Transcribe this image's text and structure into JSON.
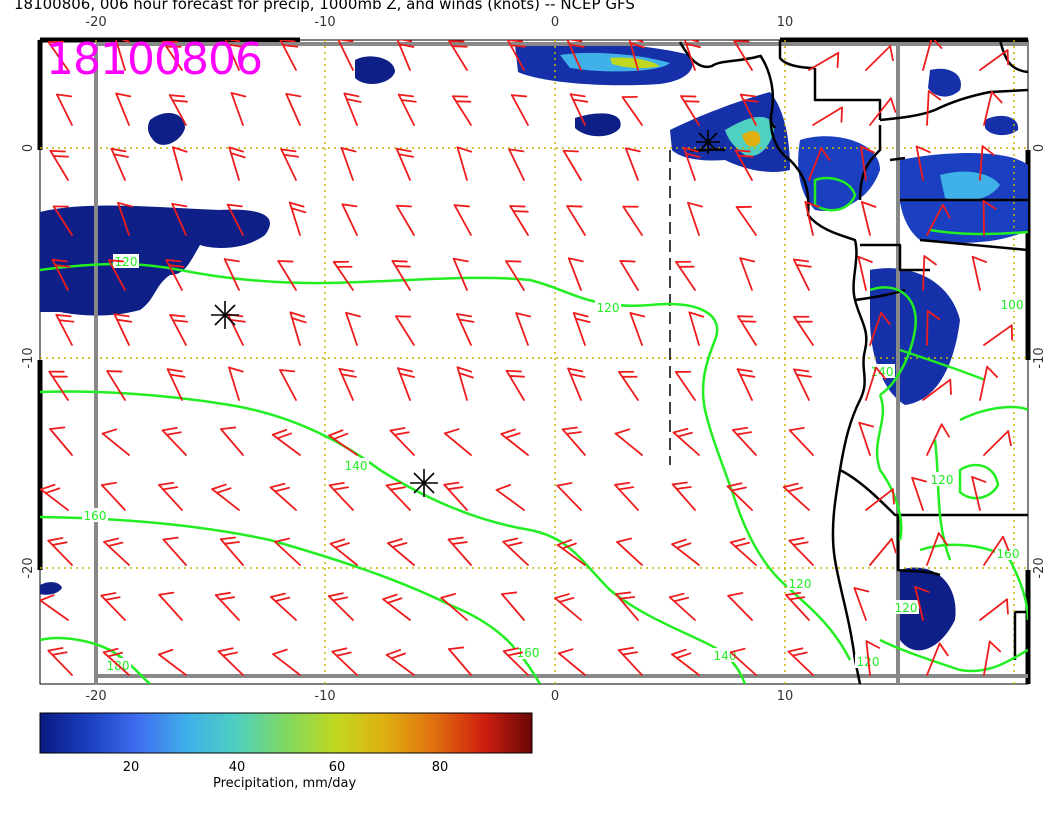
{
  "title": "18100806, 006 hour forecast for precip, 1000mb Z, and winds (knots) -- NCEP GFS",
  "stamp": "18100806",
  "lon_labels": [
    "-20",
    "-10",
    "0",
    "10"
  ],
  "lat_labels": [
    "0",
    "-10",
    "-20"
  ],
  "contour_labels": [
    "120",
    "120",
    "140",
    "160",
    "180",
    "140",
    "160",
    "120",
    "120",
    "140",
    "160",
    "120",
    "120",
    "100"
  ],
  "colorbar": {
    "label": "Precipitation, mm/day",
    "ticks": [
      "20",
      "40",
      "60",
      "80"
    ],
    "colors": [
      "#0a1a80",
      "#1a3fc0",
      "#3f6ef0",
      "#3fb0e8",
      "#4fd0c0",
      "#7fd860",
      "#c0d820",
      "#e0b010",
      "#e07010",
      "#d02010",
      "#6a0606"
    ]
  },
  "colors": {
    "contour": "#22ee22",
    "barb": "#ee1c1c",
    "grid": "#c8b400",
    "stamp": "#ff00ff"
  }
}
